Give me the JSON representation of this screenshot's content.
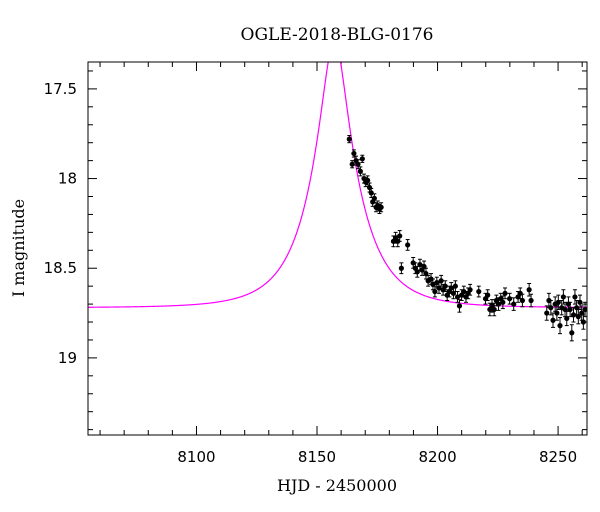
{
  "chart_data": {
    "type": "scatter",
    "title": "OGLE-2018-BLG-0176",
    "xlabel": "HJD - 2450000",
    "ylabel": "I magnitude",
    "xlim": [
      8055,
      8262
    ],
    "ylim": [
      19.43,
      17.35
    ],
    "y_inverted": true,
    "grid": false,
    "x_ticks": [
      8100,
      8150,
      8200,
      8250
    ],
    "x_tick_labels": [
      "8100",
      "8150",
      "8200",
      "8250"
    ],
    "y_ticks": [
      17.5,
      18,
      18.5,
      19
    ],
    "y_tick_labels": [
      "17.5",
      "18",
      "18.5",
      "19"
    ],
    "x_minor_step": 10,
    "y_minor_step": 0.1,
    "colors": {
      "data": "#000000",
      "model": "#ff00ff",
      "axes": "#000000"
    },
    "model": {
      "t0": 8157.2,
      "u0": 0.26,
      "tE": 19.2,
      "baseline": 18.72
    },
    "series": [
      {
        "type": "errorbar-scatter",
        "points": [
          {
            "x": 8163.4,
            "y": 17.78,
            "err": 0.02
          },
          {
            "x": 8164.6,
            "y": 17.92,
            "err": 0.02
          },
          {
            "x": 8165.3,
            "y": 17.86,
            "err": 0.02
          },
          {
            "x": 8166.2,
            "y": 17.9,
            "err": 0.025
          },
          {
            "x": 8167.0,
            "y": 17.92,
            "err": 0.025
          },
          {
            "x": 8168.0,
            "y": 17.96,
            "err": 0.025
          },
          {
            "x": 8168.8,
            "y": 17.89,
            "err": 0.02
          },
          {
            "x": 8169.5,
            "y": 18.0,
            "err": 0.025
          },
          {
            "x": 8170.2,
            "y": 18.02,
            "err": 0.025
          },
          {
            "x": 8171.0,
            "y": 18.01,
            "err": 0.025
          },
          {
            "x": 8171.8,
            "y": 18.05,
            "err": 0.025
          },
          {
            "x": 8172.5,
            "y": 18.08,
            "err": 0.025
          },
          {
            "x": 8173.1,
            "y": 18.13,
            "err": 0.025
          },
          {
            "x": 8173.8,
            "y": 18.11,
            "err": 0.025
          },
          {
            "x": 8174.5,
            "y": 18.16,
            "err": 0.025
          },
          {
            "x": 8175.2,
            "y": 18.15,
            "err": 0.025
          },
          {
            "x": 8175.9,
            "y": 18.17,
            "err": 0.025
          },
          {
            "x": 8176.6,
            "y": 18.16,
            "err": 0.025
          },
          {
            "x": 8181.7,
            "y": 18.35,
            "err": 0.03
          },
          {
            "x": 8182.6,
            "y": 18.33,
            "err": 0.03
          },
          {
            "x": 8183.5,
            "y": 18.35,
            "err": 0.03
          },
          {
            "x": 8184.3,
            "y": 18.32,
            "err": 0.03
          },
          {
            "x": 8185.0,
            "y": 18.5,
            "err": 0.03
          },
          {
            "x": 8187.6,
            "y": 18.37,
            "err": 0.03
          },
          {
            "x": 8189.9,
            "y": 18.47,
            "err": 0.03
          },
          {
            "x": 8190.8,
            "y": 18.5,
            "err": 0.03
          },
          {
            "x": 8191.6,
            "y": 18.52,
            "err": 0.03
          },
          {
            "x": 8192.7,
            "y": 18.48,
            "err": 0.03
          },
          {
            "x": 8193.6,
            "y": 18.51,
            "err": 0.03
          },
          {
            "x": 8194.4,
            "y": 18.49,
            "err": 0.03
          },
          {
            "x": 8195.2,
            "y": 18.53,
            "err": 0.03
          },
          {
            "x": 8196.1,
            "y": 18.57,
            "err": 0.03
          },
          {
            "x": 8197.3,
            "y": 18.56,
            "err": 0.03
          },
          {
            "x": 8198.1,
            "y": 18.59,
            "err": 0.03
          },
          {
            "x": 8198.9,
            "y": 18.63,
            "err": 0.03
          },
          {
            "x": 8199.7,
            "y": 18.58,
            "err": 0.03
          },
          {
            "x": 8200.6,
            "y": 18.61,
            "err": 0.03
          },
          {
            "x": 8201.5,
            "y": 18.57,
            "err": 0.03
          },
          {
            "x": 8202.3,
            "y": 18.62,
            "err": 0.03
          },
          {
            "x": 8203.2,
            "y": 18.6,
            "err": 0.03
          },
          {
            "x": 8204.0,
            "y": 18.65,
            "err": 0.03
          },
          {
            "x": 8204.9,
            "y": 18.63,
            "err": 0.03
          },
          {
            "x": 8205.7,
            "y": 18.61,
            "err": 0.03
          },
          {
            "x": 8206.6,
            "y": 18.64,
            "err": 0.03
          },
          {
            "x": 8207.4,
            "y": 18.6,
            "err": 0.03
          },
          {
            "x": 8208.3,
            "y": 18.66,
            "err": 0.03
          },
          {
            "x": 8209.1,
            "y": 18.71,
            "err": 0.035
          },
          {
            "x": 8210.0,
            "y": 18.65,
            "err": 0.03
          },
          {
            "x": 8210.9,
            "y": 18.63,
            "err": 0.03
          },
          {
            "x": 8211.8,
            "y": 18.66,
            "err": 0.03
          },
          {
            "x": 8212.7,
            "y": 18.64,
            "err": 0.03
          },
          {
            "x": 8213.5,
            "y": 18.62,
            "err": 0.03
          },
          {
            "x": 8217.1,
            "y": 18.63,
            "err": 0.03
          },
          {
            "x": 8219.9,
            "y": 18.67,
            "err": 0.03
          },
          {
            "x": 8220.8,
            "y": 18.65,
            "err": 0.03
          },
          {
            "x": 8221.7,
            "y": 18.73,
            "err": 0.035
          },
          {
            "x": 8222.6,
            "y": 18.71,
            "err": 0.035
          },
          {
            "x": 8223.5,
            "y": 18.73,
            "err": 0.035
          },
          {
            "x": 8224.4,
            "y": 18.68,
            "err": 0.03
          },
          {
            "x": 8225.3,
            "y": 18.7,
            "err": 0.035
          },
          {
            "x": 8226.2,
            "y": 18.67,
            "err": 0.03
          },
          {
            "x": 8227.1,
            "y": 18.69,
            "err": 0.035
          },
          {
            "x": 8228.0,
            "y": 18.64,
            "err": 0.03
          },
          {
            "x": 8229.9,
            "y": 18.67,
            "err": 0.03
          },
          {
            "x": 8231.6,
            "y": 18.7,
            "err": 0.035
          },
          {
            "x": 8233.4,
            "y": 18.66,
            "err": 0.03
          },
          {
            "x": 8234.3,
            "y": 18.64,
            "err": 0.03
          },
          {
            "x": 8235.2,
            "y": 18.68,
            "err": 0.035
          },
          {
            "x": 8238.0,
            "y": 18.62,
            "err": 0.035
          },
          {
            "x": 8238.8,
            "y": 18.68,
            "err": 0.035
          },
          {
            "x": 8245.3,
            "y": 18.75,
            "err": 0.04
          },
          {
            "x": 8246.2,
            "y": 18.68,
            "err": 0.04
          },
          {
            "x": 8247.0,
            "y": 18.72,
            "err": 0.04
          },
          {
            "x": 8247.9,
            "y": 18.79,
            "err": 0.04
          },
          {
            "x": 8248.8,
            "y": 18.7,
            "err": 0.04
          },
          {
            "x": 8249.5,
            "y": 18.75,
            "err": 0.04
          },
          {
            "x": 8250.1,
            "y": 18.69,
            "err": 0.04
          },
          {
            "x": 8250.8,
            "y": 18.82,
            "err": 0.045
          },
          {
            "x": 8251.5,
            "y": 18.72,
            "err": 0.04
          },
          {
            "x": 8252.2,
            "y": 18.66,
            "err": 0.04
          },
          {
            "x": 8252.9,
            "y": 18.73,
            "err": 0.04
          },
          {
            "x": 8253.6,
            "y": 18.78,
            "err": 0.04
          },
          {
            "x": 8254.3,
            "y": 18.7,
            "err": 0.04
          },
          {
            "x": 8255.0,
            "y": 18.73,
            "err": 0.04
          },
          {
            "x": 8255.7,
            "y": 18.86,
            "err": 0.045
          },
          {
            "x": 8256.4,
            "y": 18.76,
            "err": 0.04
          },
          {
            "x": 8257.0,
            "y": 18.66,
            "err": 0.04
          },
          {
            "x": 8257.7,
            "y": 18.72,
            "err": 0.04
          },
          {
            "x": 8258.4,
            "y": 18.77,
            "err": 0.04
          },
          {
            "x": 8259.1,
            "y": 18.69,
            "err": 0.04
          },
          {
            "x": 8259.8,
            "y": 18.75,
            "err": 0.04
          },
          {
            "x": 8260.5,
            "y": 18.8,
            "err": 0.04
          },
          {
            "x": 8261.2,
            "y": 18.73,
            "err": 0.04
          }
        ]
      }
    ]
  }
}
